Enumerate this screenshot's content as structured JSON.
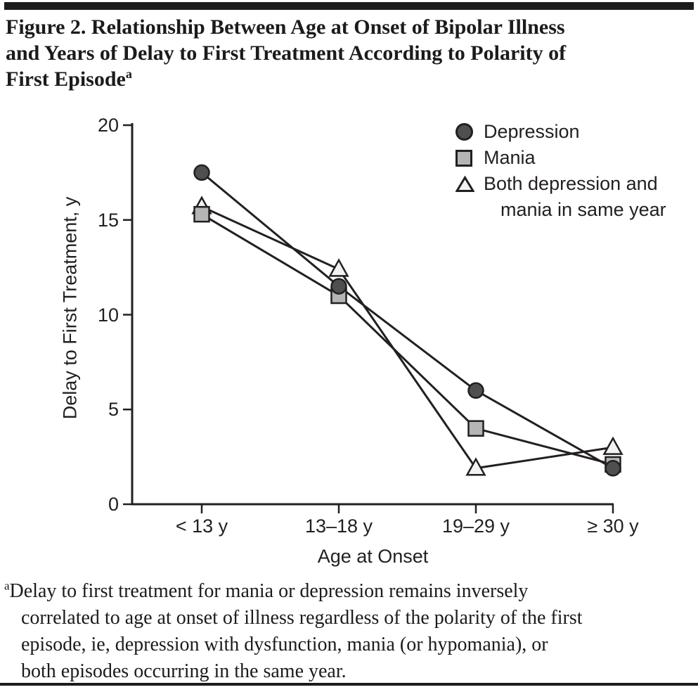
{
  "header": {
    "top_bar_color": "#1c1c1c",
    "title_lines": [
      "Figure 2. Relationship Between Age at Onset of Bipolar Illness",
      "and Years of Delay to First Treatment According to Polarity of",
      "First Episode"
    ],
    "title_superscript": "a"
  },
  "chart_data": {
    "type": "line",
    "title": "",
    "xlabel": "Age at Onset",
    "ylabel": "Delay to First Treatment, y",
    "categories": [
      "< 13 y",
      "13–18 y",
      "19–29 y",
      "≥ 30 y"
    ],
    "yticks": [
      0,
      5,
      10,
      15,
      20
    ],
    "ylim": [
      0,
      20
    ],
    "grid": false,
    "legend_position": "top-right",
    "line_color": "#231f20",
    "axis_color": "#231f20",
    "series": [
      {
        "name": "Depression",
        "marker": "circle",
        "marker_fill": "#4f4f4f",
        "values": [
          17.5,
          11.5,
          6.0,
          1.9
        ]
      },
      {
        "name": "Mania",
        "marker": "square",
        "marker_fill": "#b5b5b5",
        "values": [
          15.3,
          11.0,
          4.0,
          2.1
        ]
      },
      {
        "name": "Both depression and mania in same year",
        "marker": "triangle",
        "marker_fill": "#f2f2f2",
        "values": [
          15.7,
          12.4,
          1.9,
          3.0
        ]
      }
    ]
  },
  "legend": {
    "items": [
      {
        "marker": "circle",
        "label_lines": [
          "Depression"
        ]
      },
      {
        "marker": "square",
        "label_lines": [
          "Mania"
        ]
      },
      {
        "marker": "triangle",
        "label_lines": [
          "Both depression and",
          "mania in same year"
        ]
      }
    ]
  },
  "footnote": {
    "superscript": "a",
    "lines": [
      "Delay to first treatment for mania or depression remains inversely",
      "correlated to age at onset of illness regardless of the polarity of the first",
      "episode, ie, depression with dysfunction, mania (or hypomania), or",
      "both episodes occurring in the same year."
    ]
  }
}
